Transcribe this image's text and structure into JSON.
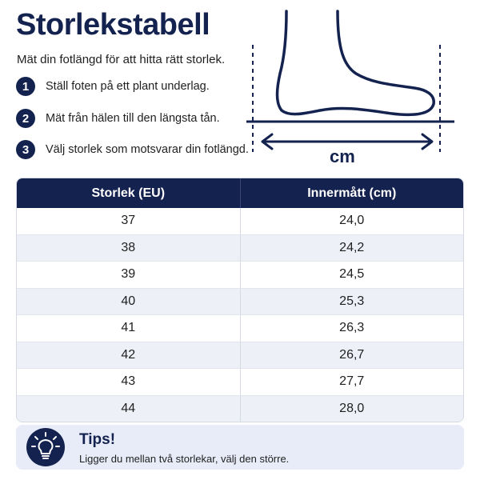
{
  "header": {
    "title": "Storlekstabell",
    "subtitle": "Mät din fotlängd för att hitta rätt storlek."
  },
  "steps": [
    {
      "number": "1",
      "text": "Ställ foten på ett plant underlag."
    },
    {
      "number": "2",
      "text": "Mät från hälen till den längsta tån."
    },
    {
      "number": "3",
      "text": "Välj storlek som motsvarar din fotlängd."
    }
  ],
  "illustration": {
    "icon": "foot-outline-icon",
    "unit_label": "cm"
  },
  "table": {
    "headers": [
      "Storlek (EU)",
      "Innermått (cm)"
    ],
    "rows": [
      [
        "37",
        "24,0"
      ],
      [
        "38",
        "24,2"
      ],
      [
        "39",
        "24,5"
      ],
      [
        "40",
        "25,3"
      ],
      [
        "41",
        "26,3"
      ],
      [
        "42",
        "26,7"
      ],
      [
        "43",
        "27,7"
      ],
      [
        "44",
        "28,0"
      ]
    ]
  },
  "tips": {
    "icon": "lightbulb-icon",
    "title": "Tips!",
    "text": "Ligger du mellan två storlekar, välj den större."
  },
  "colors": {
    "primary": "#14224f",
    "row_alt": "#eef0f8",
    "tips_bg": "#e8ecf8"
  }
}
